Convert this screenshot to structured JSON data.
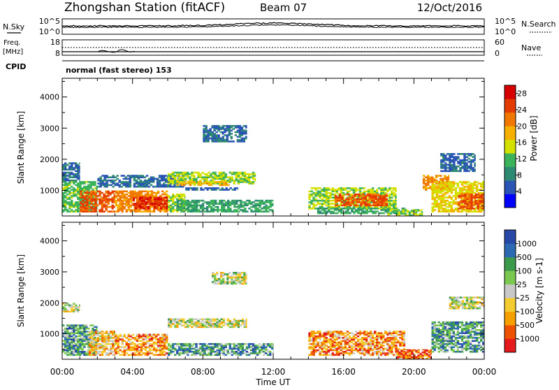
{
  "header": {
    "title": "Zhongshan Station (fitACF)",
    "beam": "Beam 07",
    "date": "12/Oct/2016"
  },
  "noise_panel": {
    "left_label": "N.Sky",
    "right_label": "N.Search",
    "left_ticks": [
      "10^5",
      "10^0"
    ],
    "right_ticks": [
      "10^5",
      "10^0"
    ]
  },
  "freq_panel": {
    "left_label_1": "Freq.",
    "left_label_2": "[MHz]",
    "right_label": "Nave",
    "left_ticks": [
      "18",
      "8"
    ],
    "right_ticks": [
      "60",
      "0"
    ]
  },
  "cpid": {
    "label": "CPID",
    "text": "normal (fast stereo) 153"
  },
  "colors": {
    "power": [
      "#0000ff",
      "#2a55b4",
      "#2f8a74",
      "#3cb25a",
      "#d4e000",
      "#f5b000",
      "#f07800",
      "#e43c00",
      "#d60000"
    ],
    "velocity": [
      "#e41a1c",
      "#ee5200",
      "#f5a000",
      "#f5cc30",
      "#c8c8c8",
      "#7ac850",
      "#3c9a4c",
      "#2d6ab4",
      "#2848a8"
    ]
  },
  "chart_data": [
    {
      "type": "heatmap",
      "name": "power",
      "ylabel": "Slant Range [km]",
      "x_ticks": [
        "00:00",
        "04:00",
        "08:00",
        "12:00",
        "16:00",
        "20:00",
        "00:00"
      ],
      "y_ticks": [
        1000,
        2000,
        3000,
        4000
      ],
      "ylim": [
        180,
        4600
      ],
      "xlim_hours": [
        0,
        24
      ],
      "colorbar": {
        "label": "Power [dB]",
        "ticks": [
          "4",
          "8",
          "12",
          "16",
          "20",
          "24",
          "28"
        ],
        "range": [
          0,
          30
        ]
      },
      "regions": [
        {
          "t": [
            0.0,
            2.0
          ],
          "r": [
            300,
            1300
          ],
          "level": 12
        },
        {
          "t": [
            0.0,
            1.0
          ],
          "r": [
            1300,
            1900
          ],
          "level": 6
        },
        {
          "t": [
            1.0,
            3.0
          ],
          "r": [
            300,
            1000
          ],
          "level": 24
        },
        {
          "t": [
            2.0,
            7.0
          ],
          "r": [
            1100,
            1500
          ],
          "level": 6
        },
        {
          "t": [
            3.0,
            6.0
          ],
          "r": [
            300,
            1000
          ],
          "level": 20
        },
        {
          "t": [
            4.0,
            6.0
          ],
          "r": [
            400,
            800
          ],
          "level": 26
        },
        {
          "t": [
            6.0,
            7.0
          ],
          "r": [
            300,
            900
          ],
          "level": 14
        },
        {
          "t": [
            6.0,
            11.0
          ],
          "r": [
            1200,
            1600
          ],
          "level": 14
        },
        {
          "t": [
            6.5,
            9.5
          ],
          "r": [
            1150,
            1300
          ],
          "level": 18
        },
        {
          "t": [
            7.0,
            10.0
          ],
          "r": [
            1000,
            1100
          ],
          "level": 6
        },
        {
          "t": [
            8.0,
            10.5
          ],
          "r": [
            2550,
            3100
          ],
          "level": 6
        },
        {
          "t": [
            6.5,
            12.0
          ],
          "r": [
            300,
            700
          ],
          "level": 10
        },
        {
          "t": [
            14.0,
            19.0
          ],
          "r": [
            400,
            1100
          ],
          "level": 14
        },
        {
          "t": [
            15.5,
            18.5
          ],
          "r": [
            500,
            900
          ],
          "level": 24
        },
        {
          "t": [
            14.5,
            19.5
          ],
          "r": [
            250,
            450
          ],
          "level": 10
        },
        {
          "t": [
            18.5,
            20.5
          ],
          "r": [
            180,
            400
          ],
          "level": 14
        },
        {
          "t": [
            20.5,
            22.0
          ],
          "r": [
            1000,
            1500
          ],
          "level": 20
        },
        {
          "t": [
            21.0,
            24.0
          ],
          "r": [
            300,
            1300
          ],
          "level": 16
        },
        {
          "t": [
            22.5,
            24.0
          ],
          "r": [
            400,
            900
          ],
          "level": 24
        },
        {
          "t": [
            21.5,
            23.5
          ],
          "r": [
            1600,
            2200
          ],
          "level": 6
        }
      ]
    },
    {
      "type": "heatmap",
      "name": "velocity",
      "ylabel": "Slant Range [km]",
      "xlabel": "Time UT",
      "x_ticks": [
        "00:00",
        "04:00",
        "08:00",
        "12:00",
        "16:00",
        "20:00",
        "00:00"
      ],
      "y_ticks": [
        1000,
        2000,
        3000,
        4000
      ],
      "ylim": [
        180,
        4600
      ],
      "xlim_hours": [
        0,
        24
      ],
      "colorbar": {
        "label": "Velocity [m s-1]",
        "ticks": [
          "1000",
          "500",
          "100",
          "25",
          "-25",
          "-100",
          "-500",
          "-1000"
        ]
      },
      "regions": [
        {
          "t": [
            0.0,
            2.0
          ],
          "r": [
            300,
            1300
          ],
          "level": 6
        },
        {
          "t": [
            0.0,
            1.0
          ],
          "r": [
            1700,
            2000
          ],
          "level": 4
        },
        {
          "t": [
            1.5,
            3.0
          ],
          "r": [
            300,
            1100
          ],
          "level": 3
        },
        {
          "t": [
            3.0,
            6.0
          ],
          "r": [
            300,
            1000
          ],
          "level": 2
        },
        {
          "t": [
            6.0,
            10.5
          ],
          "r": [
            1200,
            1500
          ],
          "level": 4
        },
        {
          "t": [
            8.5,
            10.5
          ],
          "r": [
            2600,
            3000
          ],
          "level": 4
        },
        {
          "t": [
            6.0,
            12.0
          ],
          "r": [
            300,
            700
          ],
          "level": 6
        },
        {
          "t": [
            14.0,
            19.5
          ],
          "r": [
            300,
            1100
          ],
          "level": 2
        },
        {
          "t": [
            19.0,
            21.0
          ],
          "r": [
            180,
            500
          ],
          "level": 1
        },
        {
          "t": [
            21.0,
            24.0
          ],
          "r": [
            400,
            1400
          ],
          "level": 6
        },
        {
          "t": [
            22.0,
            24.0
          ],
          "r": [
            1800,
            2200
          ],
          "level": 4
        }
      ]
    }
  ]
}
